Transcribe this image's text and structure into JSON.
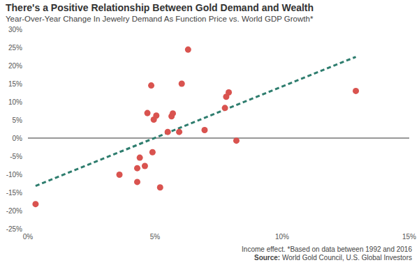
{
  "chart_data": {
    "type": "scatter",
    "title": "There's a Positive Relationship Between Gold Demand and Wealth",
    "subtitle": "Year-Over-Year Change In Jewelry Demand As Function Price vs. World GDP Growth*",
    "notes": {
      "footnote": "Income effect. *Based on data between 1992 and 2016",
      "source_label": "Source:",
      "source": "World Gold Council, U.S. Global Investors"
    },
    "x": [
      0.3,
      3.6,
      4.3,
      4.3,
      4.4,
      4.6,
      4.7,
      4.85,
      4.9,
      4.95,
      5.05,
      5.2,
      5.5,
      5.65,
      5.7,
      5.95,
      6.05,
      6.3,
      6.95,
      7.75,
      7.8,
      7.9,
      8.2,
      12.9
    ],
    "values": [
      -18.2,
      -10.1,
      -12.1,
      -8.3,
      -5.4,
      -7.7,
      6.9,
      14.5,
      -3.9,
      5.1,
      6.2,
      -13.6,
      1.7,
      6.0,
      6.8,
      1.7,
      15.0,
      24.4,
      2.2,
      8.3,
      11.4,
      12.6,
      -0.7,
      13.0
    ],
    "color": "#d9534f",
    "marker": "circle",
    "trend_line": {
      "x": [
        0.3,
        12.9
      ],
      "y": [
        -13.2,
        22.4
      ],
      "color": "#2e7d6e",
      "line_style": "dashed"
    },
    "xlim": [
      0,
      15
    ],
    "xticks": [
      {
        "value": 0,
        "label": "0%"
      },
      {
        "value": 5,
        "label": "5%"
      },
      {
        "value": 10,
        "label": "10%"
      },
      {
        "value": 15,
        "label": "15%"
      }
    ],
    "ylim": [
      -25,
      30
    ],
    "yticks": [
      {
        "value": -25,
        "label": "-25%"
      },
      {
        "value": -20,
        "label": "-20%"
      },
      {
        "value": -15,
        "label": "-15%"
      },
      {
        "value": -10,
        "label": "-10%"
      },
      {
        "value": -5,
        "label": "-5%"
      },
      {
        "value": 0,
        "label": "0%"
      },
      {
        "value": 5,
        "label": "5%"
      },
      {
        "value": 10,
        "label": "10%"
      },
      {
        "value": 15,
        "label": "15%"
      },
      {
        "value": 20,
        "label": "20%"
      },
      {
        "value": 25,
        "label": "25%"
      },
      {
        "value": 30,
        "label": "30%"
      }
    ],
    "grid": false
  }
}
